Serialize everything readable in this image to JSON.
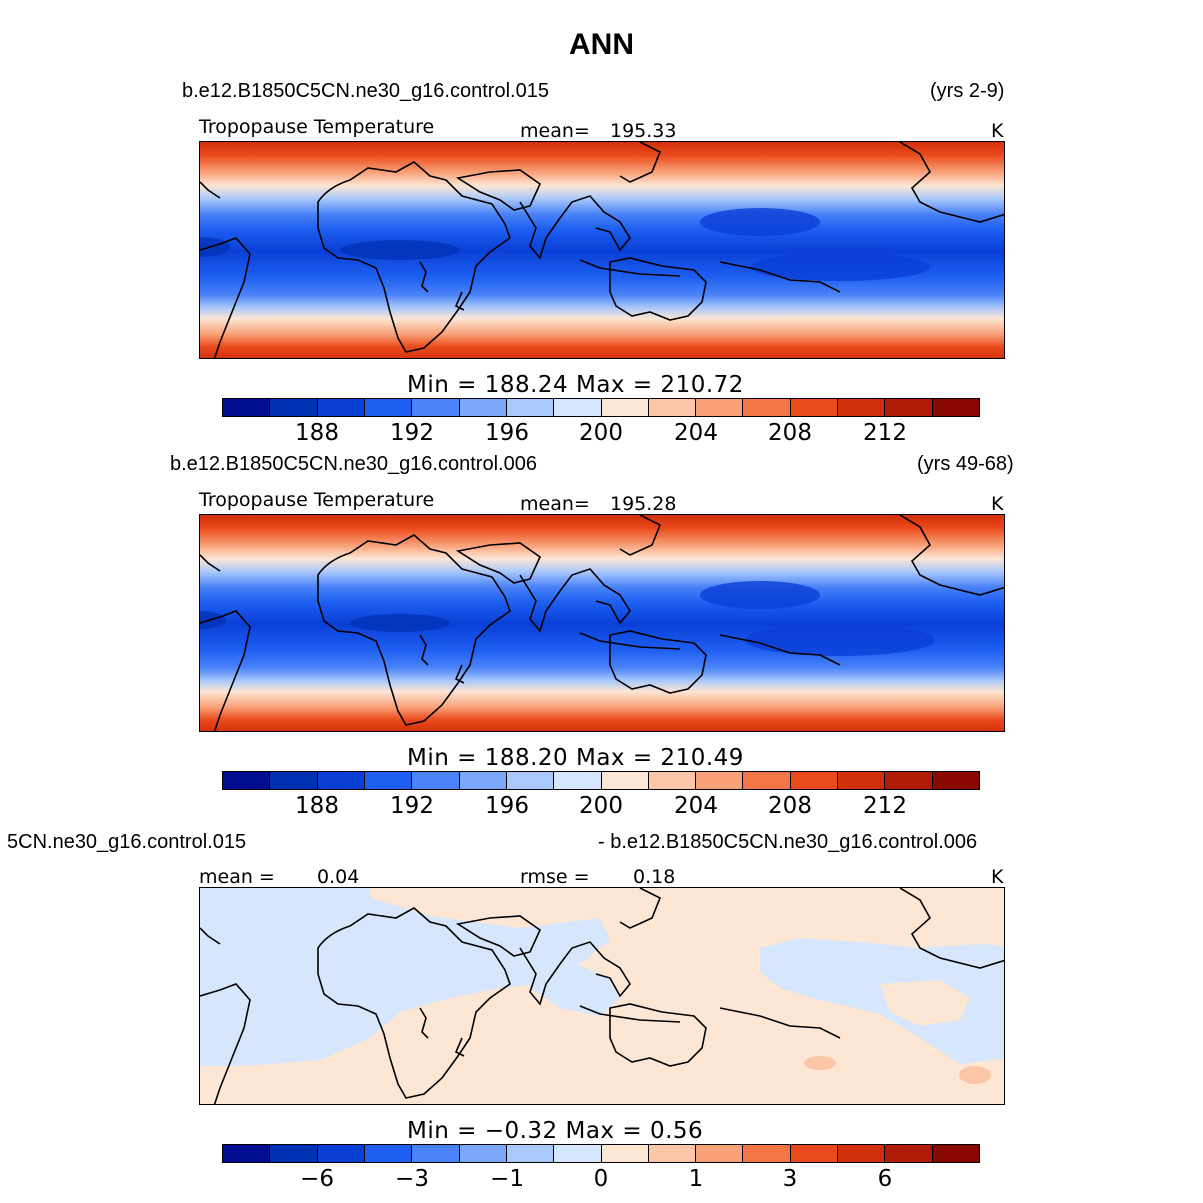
{
  "title": "ANN",
  "palette": [
    "#000e8f",
    "#0031b2",
    "#0a3fd6",
    "#1e5ff2",
    "#4a82f7",
    "#7ba7f8",
    "#a9c8fb",
    "#d6e7fd",
    "#fde6d4",
    "#fbc6a8",
    "#f9a27a",
    "#f47545",
    "#ea4a1b",
    "#d22f0b",
    "#b01c06",
    "#8a0800"
  ],
  "panels": [
    {
      "case_name": "b.e12.B1850C5CN.ne30_g16.control.015",
      "years": "(yrs 2-9)",
      "variable": "Tropopause Temperature",
      "stat_label": "mean=",
      "stat_value": "195.33",
      "units": "K",
      "min_max": "Min = 188.24 Max = 210.72",
      "ticks": [
        "188",
        "192",
        "196",
        "200",
        "204",
        "208",
        "212"
      ]
    },
    {
      "case_name": "b.e12.B1850C5CN.ne30_g16.control.006",
      "years": "(yrs 49-68)",
      "variable": "Tropopause Temperature",
      "stat_label": "mean=",
      "stat_value": "195.28",
      "units": "K",
      "min_max": "Min = 188.20 Max = 210.49",
      "ticks": [
        "188",
        "192",
        "196",
        "200",
        "204",
        "208",
        "212"
      ]
    },
    {
      "case_left": "5CN.ne30_g16.control.015",
      "case_right": "- b.e12.B1850C5CN.ne30_g16.control.006",
      "mean_label": "mean =",
      "mean_value": "0.04",
      "rmse_label": "rmse =",
      "rmse_value": "0.18",
      "units": "K",
      "min_max": "Min = −0.32 Max = 0.56",
      "ticks": [
        "−6",
        "−3",
        "−1",
        "0",
        "1",
        "3",
        "6"
      ]
    }
  ]
}
